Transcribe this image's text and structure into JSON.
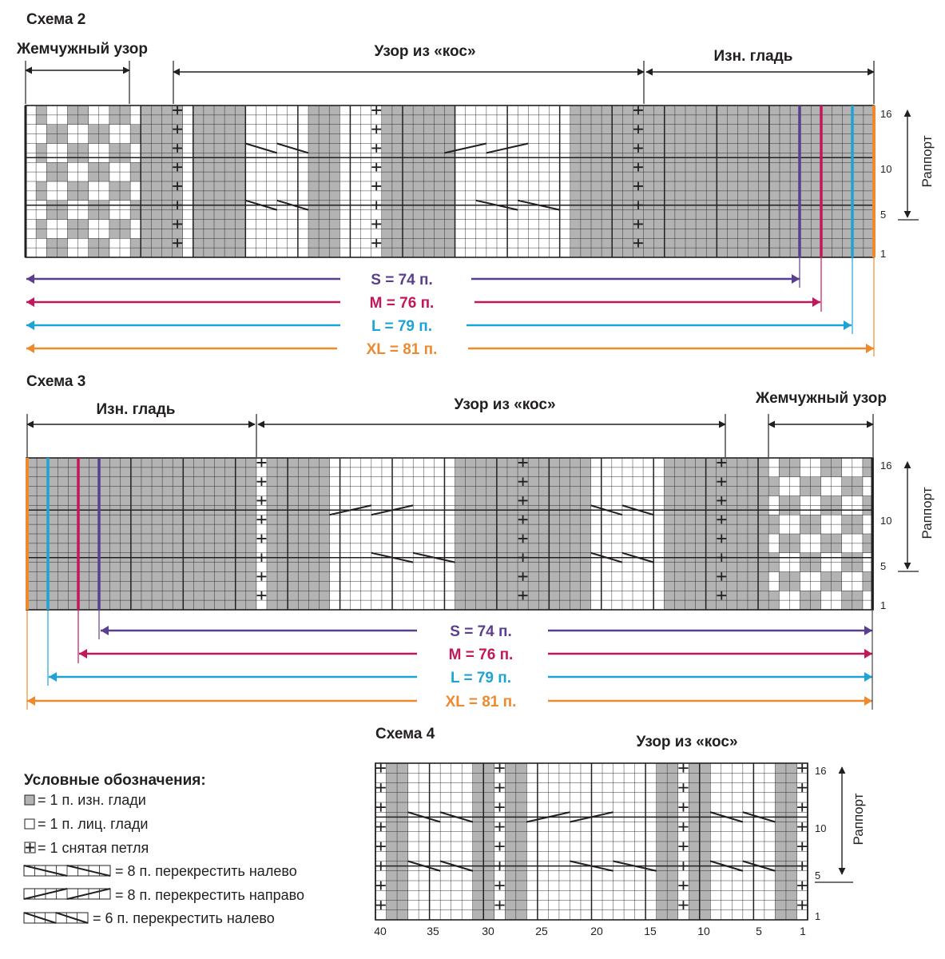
{
  "colors": {
    "ink": "#231f20",
    "purl": "#b3b3b3",
    "size_s": "#5b3f8f",
    "size_m": "#c2185b",
    "size_l": "#1ea3d6",
    "size_xl": "#ee8a2e"
  },
  "scheme2": {
    "title": "Схема 2",
    "sections": [
      "Жемчужный узор",
      "Узор из «кос»",
      "Изн. гладь"
    ],
    "row_labels": [
      "16",
      "10",
      "5",
      "1"
    ],
    "repeat_label": "Раппорт",
    "sizes": [
      {
        "label": "S = 74 п.",
        "color_key": "size_s"
      },
      {
        "label": "M = 76 п.",
        "color_key": "size_m"
      },
      {
        "label": "L = 79 п.",
        "color_key": "size_l"
      },
      {
        "label": "XL = 81 п.",
        "color_key": "size_xl"
      }
    ]
  },
  "scheme3": {
    "title": "Схема 3",
    "sections": [
      "Изн. гладь",
      "Узор из «кос»",
      "Жемчужный узор"
    ],
    "row_labels": [
      "16",
      "10",
      "5",
      "1"
    ],
    "repeat_label": "Раппорт",
    "sizes": [
      {
        "label": "S = 74 п.",
        "color_key": "size_s"
      },
      {
        "label": "M = 76 п.",
        "color_key": "size_m"
      },
      {
        "label": "L = 79 п.",
        "color_key": "size_l"
      },
      {
        "label": "XL = 81 п.",
        "color_key": "size_xl"
      }
    ]
  },
  "scheme4": {
    "title": "Схема 4",
    "section": "Узор из «кос»",
    "row_labels": [
      "16",
      "10",
      "5",
      "1"
    ],
    "repeat_label": "Раппорт",
    "col_labels": [
      "40",
      "35",
      "30",
      "25",
      "20",
      "15",
      "10",
      "5",
      "1"
    ]
  },
  "legend": {
    "title": "Условные обозначения:",
    "items": [
      {
        "icon": "purl-square-icon",
        "text": "= 1 п. изн. глади"
      },
      {
        "icon": "knit-square-icon",
        "text": "= 1 п. лиц. глади"
      },
      {
        "icon": "slipped-stitch-icon",
        "text": "= 1 снятая петля"
      },
      {
        "icon": "cable-8-left-icon",
        "text": "= 8 п. перекрестить налево"
      },
      {
        "icon": "cable-8-right-icon",
        "text": "= 8 п. перекрестить направо"
      },
      {
        "icon": "cable-6-left-icon",
        "text": "= 6 п. перекрестить налево"
      }
    ]
  }
}
